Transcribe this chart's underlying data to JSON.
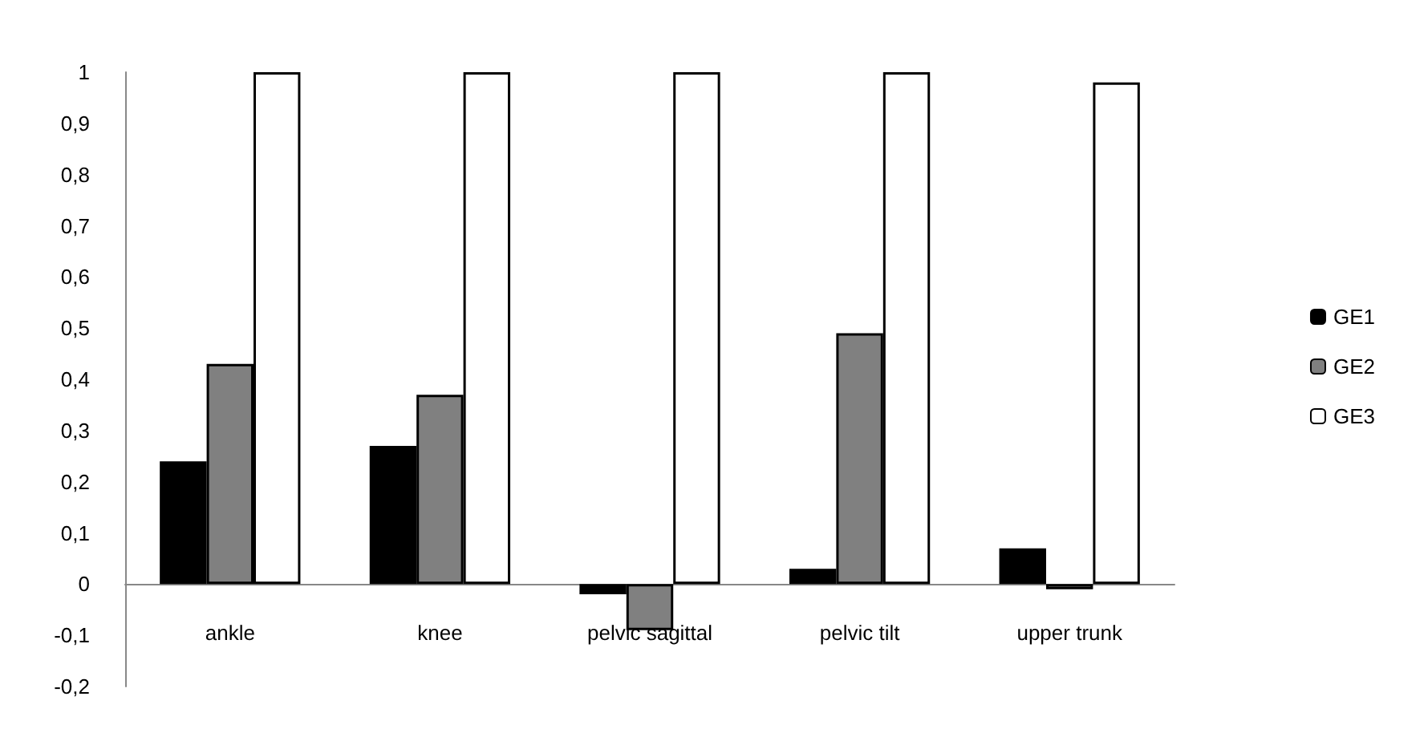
{
  "chart_data": {
    "type": "bar",
    "categories": [
      "ankle",
      "knee",
      "pelvic sagittal",
      "pelvic tilt",
      "upper trunk"
    ],
    "series": [
      {
        "name": "GE1",
        "color": "#000000",
        "values": [
          0.24,
          0.27,
          -0.02,
          0.03,
          0.07
        ]
      },
      {
        "name": "GE2",
        "color": "#808080",
        "values": [
          0.43,
          0.37,
          -0.09,
          0.49,
          -0.01
        ]
      },
      {
        "name": "GE3",
        "color": "#ffffff",
        "values": [
          1,
          1,
          1,
          1,
          0.98
        ]
      }
    ],
    "ylim": [
      -0.2,
      1
    ],
    "yticks": [
      {
        "value": -0.2,
        "label": "-0,2"
      },
      {
        "value": -0.1,
        "label": "-0,1"
      },
      {
        "value": 0,
        "label": "0"
      },
      {
        "value": 0.1,
        "label": "0,1"
      },
      {
        "value": 0.2,
        "label": "0,2"
      },
      {
        "value": 0.3,
        "label": "0,3"
      },
      {
        "value": 0.4,
        "label": "0,4"
      },
      {
        "value": 0.5,
        "label": "0,5"
      },
      {
        "value": 0.6,
        "label": "0,6"
      },
      {
        "value": 0.7,
        "label": "0,7"
      },
      {
        "value": 0.8,
        "label": "0,8"
      },
      {
        "value": 0.9,
        "label": "0,9"
      },
      {
        "value": 1,
        "label": "1"
      }
    ],
    "grid": false,
    "legend": "right"
  }
}
